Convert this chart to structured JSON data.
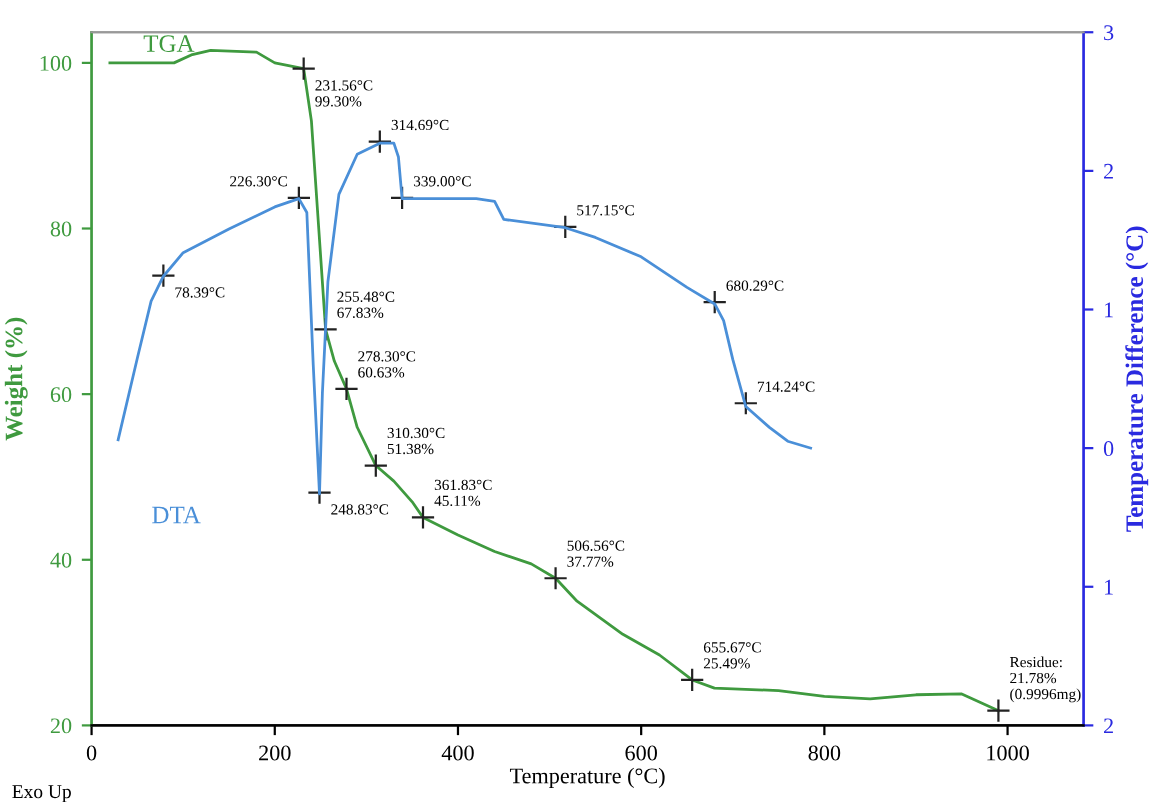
{
  "chart_data": {
    "type": "line",
    "xlabel": "Temperature (°C)",
    "ylabel": "Weight (%)",
    "y2label": "Temperature Difference (°C)",
    "xlim": [
      0,
      1083
    ],
    "xticks": [
      0,
      200,
      400,
      600,
      800,
      1000
    ],
    "ylim": [
      20,
      103.7
    ],
    "yticks": [
      20,
      40,
      60,
      80,
      100
    ],
    "y2lim": [
      -2,
      3
    ],
    "y2ticks": [
      {
        "value": -2,
        "label": "2"
      },
      {
        "value": -1,
        "label": "1"
      },
      0,
      1,
      2,
      3
    ],
    "grid": false,
    "legend": false,
    "marker": "none",
    "line_style": "solid",
    "series": [
      {
        "name": "TGA",
        "color": "#3f9a3f",
        "x": [
          20,
          90,
          110,
          130,
          180,
          200,
          231.56,
          240,
          248,
          255.48,
          265,
          278.3,
          290,
          310.3,
          330,
          350,
          361.83,
          400,
          440,
          480,
          506.56,
          530,
          580,
          620,
          655.67,
          680,
          750,
          800,
          850,
          900,
          950,
          990
        ],
        "values": [
          100,
          100,
          101,
          101.5,
          101.3,
          100,
          99.3,
          93,
          80,
          67.83,
          64,
          60.63,
          56,
          51.38,
          49.5,
          47,
          45.11,
          43,
          41,
          39.5,
          37.77,
          35,
          31,
          28.5,
          25.49,
          24.5,
          24.2,
          23.5,
          23.2,
          23.7,
          23.8,
          21.78
        ]
      },
      {
        "name": "DTA",
        "color": "#4a8fd8",
        "axis": "y2",
        "x": [
          29,
          50,
          65,
          78.39,
          100,
          150,
          200,
          226.3,
          235,
          242,
          248.83,
          252,
          258,
          270,
          290,
          314.69,
          330,
          335,
          339,
          420,
          440,
          450,
          517.15,
          550,
          600,
          650,
          680.29,
          690,
          700,
          714.24,
          740,
          760,
          785
        ],
        "values": [
          0.06,
          0.65,
          1.06,
          1.24,
          1.41,
          1.58,
          1.74,
          1.8,
          1.7,
          0.6,
          -0.33,
          0.4,
          1.2,
          1.83,
          2.12,
          2.2,
          2.2,
          2.1,
          1.8,
          1.8,
          1.78,
          1.65,
          1.59,
          1.52,
          1.38,
          1.16,
          1.04,
          0.92,
          0.64,
          0.3,
          0.15,
          0.05,
          0.0
        ]
      }
    ],
    "annotations": [
      {
        "text": "231.56°C\n99.30%",
        "x": 231.56,
        "y": 99.3
      },
      {
        "text": "255.48°C\n67.83%",
        "x": 255.48,
        "y": 67.83
      },
      {
        "text": "278.30°C\n60.63%",
        "x": 278.3,
        "y": 60.63
      },
      {
        "text": "310.30°C\n51.38%",
        "x": 310.3,
        "y": 51.38
      },
      {
        "text": "361.83°C\n45.11%",
        "x": 361.83,
        "y": 45.11
      },
      {
        "text": "506.56°C\n37.77%",
        "x": 506.56,
        "y": 37.77
      },
      {
        "text": "655.67°C\n25.49%",
        "x": 655.67,
        "y": 25.49
      },
      {
        "text": "Residue:\n21.78%\n(0.9996mg)",
        "x": 990,
        "y": 21.78
      },
      {
        "text": "78.39°C",
        "x": 78.39,
        "y": 74.3
      },
      {
        "text": "226.30°C",
        "x": 226.3,
        "y": 83.7
      },
      {
        "text": "248.83°C",
        "x": 248.83,
        "y": 48.1
      },
      {
        "text": "314.69°C",
        "x": 314.69,
        "y": 90.5
      },
      {
        "text": "339.00°C",
        "x": 339.0,
        "y": 83.7
      },
      {
        "text": "517.15°C",
        "x": 517.15,
        "y": 80.2
      },
      {
        "text": "680.29°C",
        "x": 680.29,
        "y": 71.1
      },
      {
        "text": "714.24°C",
        "x": 714.24,
        "y": 58.9
      },
      "Exo Up"
    ]
  }
}
